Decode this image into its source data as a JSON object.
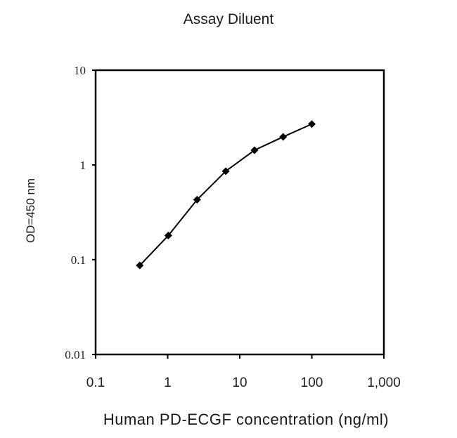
{
  "chart_data": {
    "type": "line",
    "title": "Assay Diluent",
    "xlabel": "Human PD-ECGF concentration (ng/ml)",
    "ylabel": "OD=450 nm",
    "xscale": "log",
    "yscale": "log",
    "xlim": [
      0.1,
      1000
    ],
    "ylim": [
      0.01,
      10
    ],
    "x_ticks": [
      "0.1",
      "1",
      "10",
      "100",
      "1,000"
    ],
    "y_ticks": [
      "10",
      "1",
      "0.1",
      "0.01"
    ],
    "grid": false,
    "legend": null,
    "series": [
      {
        "name": "Assay Diluent",
        "marker": "diamond",
        "color": "#000000",
        "x": [
          0.41,
          1.02,
          2.56,
          6.4,
          16,
          40,
          100
        ],
        "y": [
          0.087,
          0.18,
          0.43,
          0.86,
          1.43,
          1.98,
          2.7
        ]
      }
    ]
  }
}
